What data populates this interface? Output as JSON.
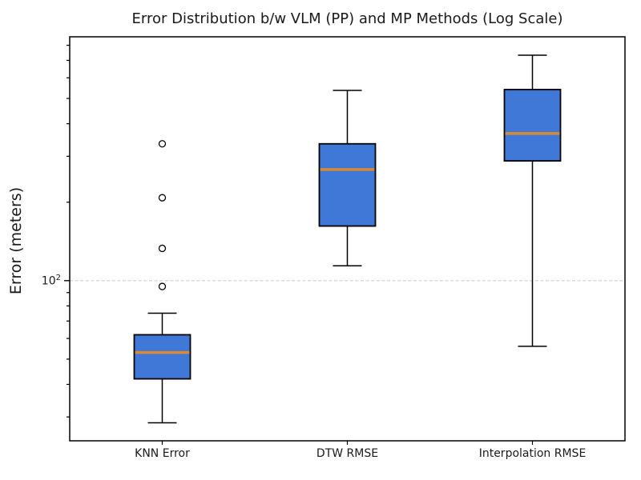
{
  "title": "Error Distribution b/w VLM (PP) and MP Methods (Log Scale)",
  "chart_data": {
    "type": "box",
    "title": "Error Distribution b/w VLM (PP) and MP Methods (Log Scale)",
    "xlabel": "",
    "ylabel": "Error (meters)",
    "yscale": "log",
    "ylim": [
      24.3,
      862
    ],
    "ytick_major": {
      "value": 100,
      "base": "10",
      "exp": "2"
    },
    "yticks_minor": [
      30,
      40,
      50,
      60,
      70,
      80,
      90,
      200,
      300,
      400,
      500,
      600,
      700,
      800
    ],
    "grid": {
      "axis": "y",
      "which": "major",
      "style": "dashed",
      "color": "#c6c6c6"
    },
    "legend": "none",
    "categories": [
      "KNN Error",
      "DTW RMSE",
      "Interpolation RMSE"
    ],
    "series": [
      {
        "name": "KNN Error",
        "whislo": 28.5,
        "q1": 42,
        "med": 53,
        "q3": 62,
        "whishi": 75,
        "fliers": [
          95,
          133,
          208,
          335
        ]
      },
      {
        "name": "DTW RMSE",
        "whislo": 114,
        "q1": 162,
        "med": 267,
        "q3": 335,
        "whishi": 537,
        "fliers": []
      },
      {
        "name": "Interpolation RMSE",
        "whislo": 56,
        "q1": 288,
        "med": 367,
        "q3": 541,
        "whishi": 733,
        "fliers": []
      }
    ],
    "colors": {
      "box_fill": "#4078d8",
      "box_edge": "#000000",
      "median": "#d98a31",
      "whisker": "#000000",
      "flier_edge": "#000000",
      "flier_fill": "#ffffff",
      "spine": "#000000",
      "grid": "#c6c6c6"
    }
  }
}
